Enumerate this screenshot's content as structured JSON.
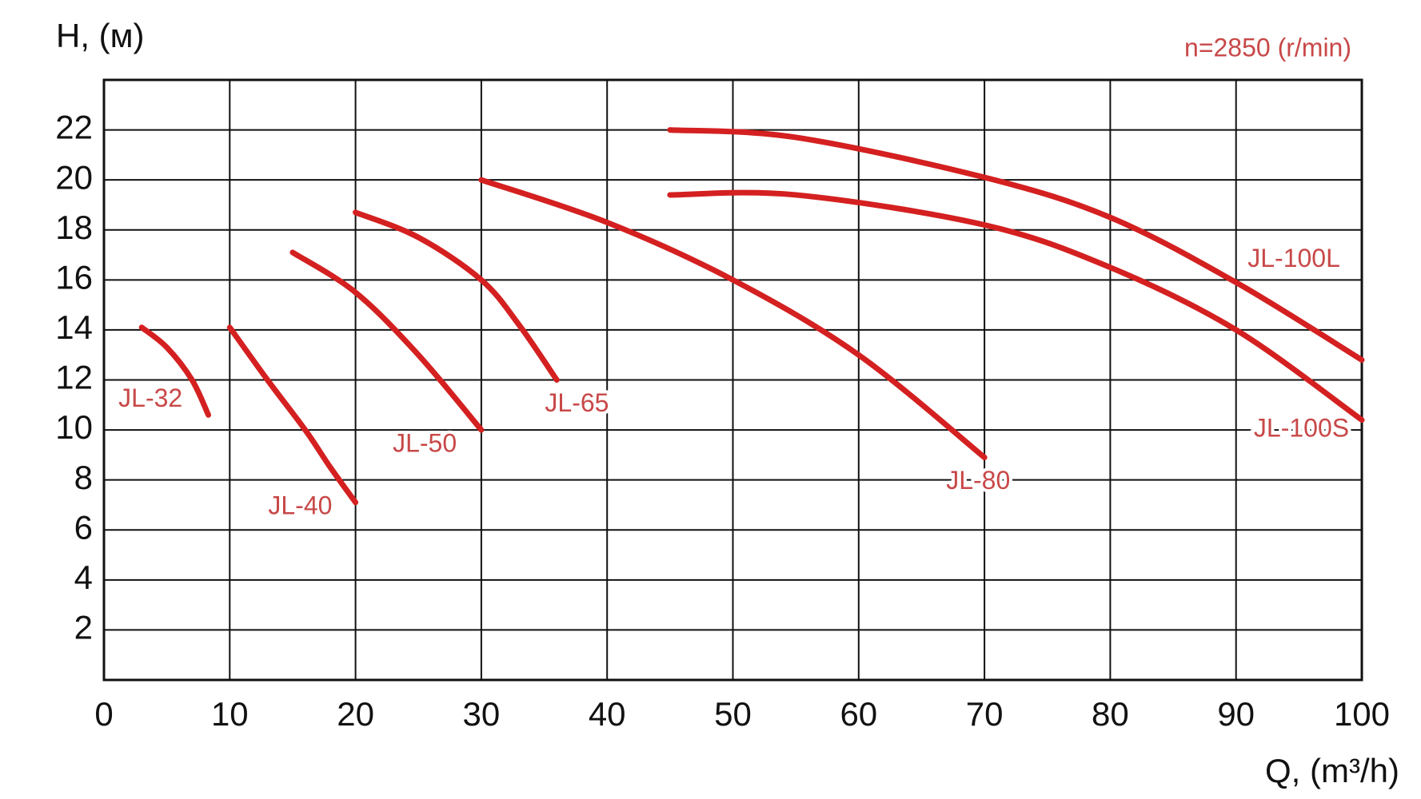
{
  "chart_data": {
    "type": "line",
    "y_label": "H, (м)",
    "x_label": "Q, (m³/h)",
    "annotation": "n=2850 (r/min)",
    "xlim": [
      0,
      100
    ],
    "xticks": [
      0,
      10,
      20,
      30,
      40,
      50,
      60,
      70,
      80,
      90,
      100
    ],
    "ylim": [
      0,
      24
    ],
    "yticks": [
      2,
      4,
      6,
      8,
      10,
      12,
      14,
      16,
      18,
      20,
      22
    ],
    "grid": true,
    "series": [
      {
        "name": "JL-32",
        "color": "#d42020",
        "x": [
          3,
          5,
          7,
          8.3
        ],
        "values": [
          14.1,
          13.3,
          12,
          10.6
        ]
      },
      {
        "name": "JL-40",
        "color": "#d42020",
        "x": [
          10,
          13,
          16,
          18,
          20
        ],
        "values": [
          14.1,
          12,
          10,
          8.5,
          7.1
        ]
      },
      {
        "name": "JL-50",
        "color": "#d42020",
        "x": [
          15,
          20,
          25,
          30
        ],
        "values": [
          17.1,
          15.5,
          13,
          10
        ]
      },
      {
        "name": "JL-65",
        "color": "#d42020",
        "x": [
          20,
          25,
          30,
          33,
          36
        ],
        "values": [
          18.7,
          17.7,
          16,
          14.2,
          12
        ]
      },
      {
        "name": "JL-80",
        "color": "#d42020",
        "x": [
          30,
          40,
          50,
          60,
          70
        ],
        "values": [
          20,
          18.3,
          16,
          13,
          8.9
        ]
      },
      {
        "name": "JL-100L",
        "color": "#d42020",
        "x": [
          45,
          55,
          70,
          80,
          90,
          100
        ],
        "values": [
          22,
          21.7,
          20.1,
          18.5,
          15.9,
          12.8
        ]
      },
      {
        "name": "JL-100S",
        "color": "#d42020",
        "x": [
          45,
          55,
          70,
          80,
          90,
          100
        ],
        "values": [
          19.4,
          19.4,
          18.2,
          16.5,
          14,
          10.4
        ]
      }
    ]
  }
}
